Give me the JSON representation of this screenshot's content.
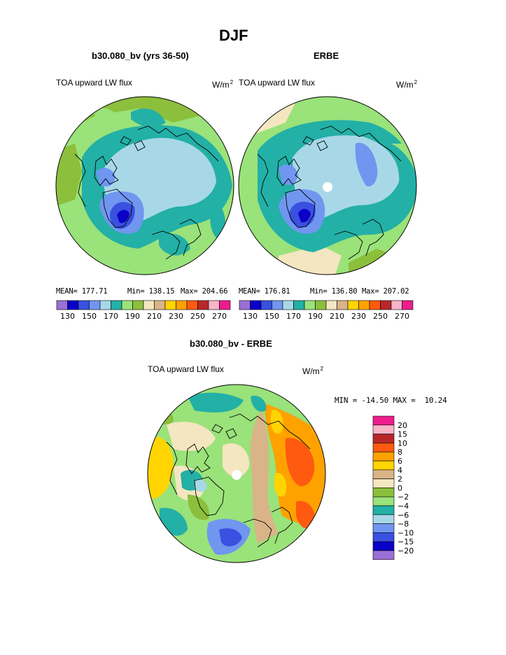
{
  "figure": {
    "title": "DJF",
    "panels": [
      {
        "id": "model",
        "subtitle": "b30.080_bv (yrs 36-50)",
        "left_label": "TOA upward LW flux",
        "units": "W/m",
        "units_sup": "2",
        "mean_label": "MEAN= 177.71",
        "min_label": "Min= 138.15",
        "max_label": "Max= 204.66"
      },
      {
        "id": "obs",
        "subtitle": "ERBE",
        "left_label": "TOA upward LW flux",
        "units": "W/m",
        "units_sup": "2",
        "mean_label": "MEAN= 176.81",
        "min_label": "Min= 136.80",
        "max_label": "Max= 207.02"
      }
    ],
    "diff_panel": {
      "subtitle": "b30.080_bv - ERBE",
      "left_label": "TOA upward LW flux",
      "units": "W/m",
      "units_sup": "2",
      "minmax_label": "MIN = -14.50 MAX =  10.24"
    }
  },
  "chart_data": [
    {
      "type": "heatmap",
      "projection": "north polar stereographic",
      "title": "b30.080_bv (yrs 36-50)",
      "variable": "TOA upward LW flux",
      "units": "W/m2",
      "mean": 177.71,
      "min": 138.15,
      "max": 204.66,
      "colorbar_ticks": [
        "130",
        "150",
        "170",
        "190",
        "210",
        "230",
        "250",
        "270"
      ],
      "colorbar_colors": [
        "#9b6fd6",
        "#0a00c8",
        "#3a50e0",
        "#7096f0",
        "#a8d8e8",
        "#23b0a6",
        "#9ae27a",
        "#8cbf3c",
        "#f4e6c0",
        "#d9b488",
        "#ffd400",
        "#ffa200",
        "#ff5a10",
        "#b8282a",
        "#f8b4c8",
        "#ee1c8c"
      ]
    },
    {
      "type": "heatmap",
      "projection": "north polar stereographic",
      "title": "ERBE",
      "variable": "TOA upward LW flux",
      "units": "W/m2",
      "mean": 176.81,
      "min": 136.8,
      "max": 207.02,
      "colorbar_ticks": [
        "130",
        "150",
        "170",
        "190",
        "210",
        "230",
        "250",
        "270"
      ],
      "colorbar_colors": [
        "#9b6fd6",
        "#0a00c8",
        "#3a50e0",
        "#7096f0",
        "#a8d8e8",
        "#23b0a6",
        "#9ae27a",
        "#8cbf3c",
        "#f4e6c0",
        "#d9b488",
        "#ffd400",
        "#ffa200",
        "#ff5a10",
        "#b8282a",
        "#f8b4c8",
        "#ee1c8c"
      ]
    },
    {
      "type": "heatmap",
      "projection": "north polar stereographic",
      "title": "b30.080_bv - ERBE",
      "variable": "TOA upward LW flux",
      "units": "W/m2",
      "min": -14.5,
      "max": 10.24,
      "colorbar_ticks": [
        "20",
        "15",
        "10",
        "8",
        "6",
        "4",
        "2",
        "0",
        "-2",
        "-4",
        "-6",
        "-8",
        "-10",
        "-15",
        "-20"
      ],
      "colorbar_colors": [
        "#ee1c8c",
        "#f8b4c8",
        "#b8282a",
        "#ff5a10",
        "#ffa200",
        "#ffd400",
        "#d9b488",
        "#f4e6c0",
        "#8cbf3c",
        "#9ae27a",
        "#23b0a6",
        "#a8d8e8",
        "#7096f0",
        "#3a50e0",
        "#0a00c8",
        "#9b6fd6"
      ]
    }
  ]
}
